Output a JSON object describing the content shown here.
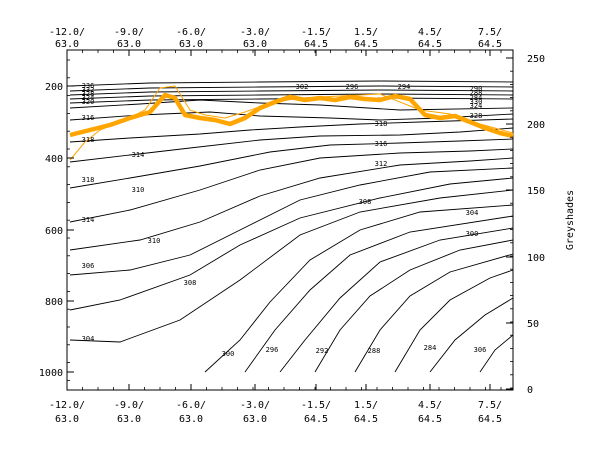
{
  "chart_data": {
    "type": "line",
    "title": "",
    "xlabel": "",
    "ylabel": "",
    "y2label": "Greyshades",
    "x_top_ticks": [
      {
        "line1": "-12.0/",
        "line2": "63.0"
      },
      {
        "line1": "-9.0/",
        "line2": "63.0"
      },
      {
        "line1": "-6.0/",
        "line2": "63.0"
      },
      {
        "line1": "-3.0/",
        "line2": "63.0"
      },
      {
        "line1": "-1.5/",
        "line2": "64.5"
      },
      {
        "line1": "1.5/",
        "line2": "64.5"
      },
      {
        "line1": "4.5/",
        "line2": "64.5"
      },
      {
        "line1": "7.5/",
        "line2": "64.5"
      }
    ],
    "x_bottom_ticks": [
      {
        "line1": "-12.0/",
        "line2": "63.0"
      },
      {
        "line1": "-9.0/",
        "line2": "63.0"
      },
      {
        "line1": "-6.0/",
        "line2": "63.0"
      },
      {
        "line1": "-3.0/",
        "line2": "63.0"
      },
      {
        "line1": "-1.5/",
        "line2": "64.5"
      },
      {
        "line1": "1.5/",
        "line2": "64.5"
      },
      {
        "line1": "4.5/",
        "line2": "64.5"
      },
      {
        "line1": "7.5/",
        "line2": "64.5"
      }
    ],
    "y_left_ticks": [
      "200",
      "400",
      "600",
      "800",
      "1000"
    ],
    "y_right_ticks": [
      "250",
      "200",
      "150",
      "100",
      "50",
      "0"
    ],
    "contour_labels": [
      "336",
      "332",
      "328",
      "324",
      "320",
      "316",
      "318",
      "314",
      "318",
      "310",
      "314",
      "310",
      "306",
      "308",
      "304",
      "300",
      "296",
      "292",
      "288",
      "284",
      "306",
      "302",
      "296",
      "294",
      "290",
      "288",
      "284",
      "330",
      "324",
      "328",
      "318",
      "316",
      "312",
      "308",
      "304",
      "300"
    ],
    "series_colors": {
      "contours": "#000000",
      "orange_thick": "#FFA500",
      "orange_thin": "#FFA500"
    }
  }
}
